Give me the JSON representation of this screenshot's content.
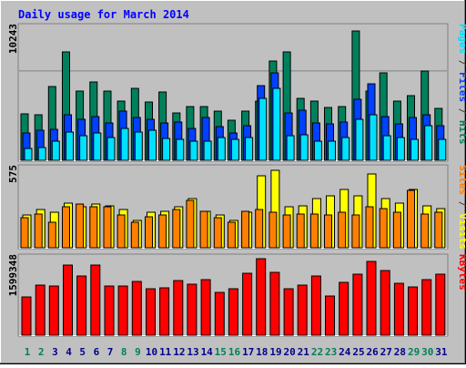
{
  "title": "Daily usage for March 2014",
  "colors": {
    "hits": "#00805C",
    "files": "#0040FF",
    "pages": "#00E0FF",
    "visits": "#FFFF00",
    "sites": "#FF8000",
    "kbytes": "#FF0000",
    "weekday": "#00008B",
    "weekend": "#00805C",
    "panel": "#C0C0C0",
    "title": "#0000FF"
  },
  "chart_data": [
    {
      "type": "bar",
      "panel": "hits-files-pages",
      "categories": [
        "1",
        "2",
        "3",
        "4",
        "5",
        "6",
        "7",
        "8",
        "9",
        "10",
        "11",
        "12",
        "13",
        "14",
        "15",
        "16",
        "17",
        "18",
        "19",
        "20",
        "21",
        "22",
        "23",
        "24",
        "25",
        "26",
        "27",
        "28",
        "29",
        "30",
        "31"
      ],
      "max_label": "10243",
      "ylim": [
        0,
        10243
      ],
      "series": [
        {
          "name": "Hits",
          "values": [
            3600,
            3500,
            5700,
            8400,
            5400,
            6100,
            5400,
            4600,
            5600,
            4500,
            5300,
            3700,
            4200,
            4200,
            3800,
            3100,
            3800,
            4600,
            7700,
            8400,
            4800,
            4600,
            4100,
            4200,
            10000,
            5400,
            6800,
            4600,
            5000,
            6900,
            4000
          ]
        },
        {
          "name": "Files",
          "values": [
            2100,
            2300,
            2400,
            3500,
            3200,
            3400,
            2900,
            3800,
            3300,
            3200,
            2900,
            3000,
            2500,
            3300,
            2600,
            2100,
            2700,
            5800,
            6800,
            3700,
            3900,
            2900,
            2800,
            3000,
            4700,
            5900,
            3400,
            2800,
            3300,
            3500,
            2700
          ]
        },
        {
          "name": "Pages",
          "values": [
            900,
            1000,
            1500,
            2200,
            1900,
            2100,
            1800,
            2500,
            2200,
            2300,
            1700,
            1600,
            1500,
            1500,
            1800,
            1600,
            1800,
            4800,
            5600,
            1900,
            2000,
            1500,
            1500,
            1800,
            3200,
            3500,
            1900,
            1800,
            1600,
            2700,
            1600
          ]
        }
      ]
    },
    {
      "type": "bar",
      "panel": "visits-sites",
      "categories": [
        "1",
        "2",
        "3",
        "4",
        "5",
        "6",
        "7",
        "8",
        "9",
        "10",
        "11",
        "12",
        "13",
        "14",
        "15",
        "16",
        "17",
        "18",
        "19",
        "20",
        "21",
        "22",
        "23",
        "24",
        "25",
        "26",
        "27",
        "28",
        "29",
        "30",
        "31"
      ],
      "max_label": "575",
      "ylim": [
        0,
        575
      ],
      "series": [
        {
          "name": "Visits",
          "values": [
            240,
            280,
            260,
            330,
            300,
            320,
            310,
            280,
            200,
            260,
            270,
            300,
            360,
            270,
            240,
            200,
            260,
            530,
            565,
            300,
            310,
            360,
            380,
            430,
            380,
            540,
            360,
            330,
            430,
            310,
            290
          ]
        },
        {
          "name": "Sites",
          "values": [
            220,
            250,
            190,
            300,
            320,
            300,
            300,
            240,
            190,
            230,
            240,
            280,
            350,
            270,
            220,
            190,
            270,
            280,
            260,
            240,
            250,
            250,
            240,
            260,
            240,
            300,
            290,
            260,
            420,
            250,
            260
          ]
        }
      ]
    },
    {
      "type": "bar",
      "panel": "kbytes",
      "categories": [
        "1",
        "2",
        "3",
        "4",
        "5",
        "6",
        "7",
        "8",
        "9",
        "10",
        "11",
        "12",
        "13",
        "14",
        "15",
        "16",
        "17",
        "18",
        "19",
        "20",
        "21",
        "22",
        "23",
        "24",
        "25",
        "26",
        "27",
        "28",
        "29",
        "30",
        "31"
      ],
      "max_label": "1599348",
      "ylim": [
        0,
        1599348
      ],
      "series": [
        {
          "name": "KBytes",
          "values": [
            800000,
            1040000,
            1020000,
            1470000,
            1230000,
            1460000,
            1030000,
            1030000,
            1120000,
            980000,
            990000,
            1140000,
            1070000,
            1170000,
            890000,
            970000,
            1290000,
            1590000,
            1320000,
            980000,
            1040000,
            1230000,
            820000,
            1110000,
            1280000,
            1540000,
            1360000,
            1080000,
            1000000,
            1170000,
            1270000
          ]
        }
      ]
    }
  ],
  "legend": {
    "top": [
      {
        "text": "Pages",
        "color": "#00E0FF"
      },
      {
        "text": " / ",
        "color": "#404040"
      },
      {
        "text": "Files",
        "color": "#0040FF"
      },
      {
        "text": " / ",
        "color": "#404040"
      },
      {
        "text": "Hits",
        "color": "#00805C"
      }
    ],
    "middle": [
      {
        "text": "Sites",
        "color": "#FF8000"
      },
      {
        "text": " / ",
        "color": "#404040"
      },
      {
        "text": "Visits",
        "color": "#FFFF00"
      }
    ],
    "bottom": [
      {
        "text": "KBytes",
        "color": "#FF0000"
      }
    ]
  },
  "weekend_days": [
    "1",
    "2",
    "8",
    "9",
    "15",
    "16",
    "22",
    "23",
    "29",
    "30"
  ]
}
